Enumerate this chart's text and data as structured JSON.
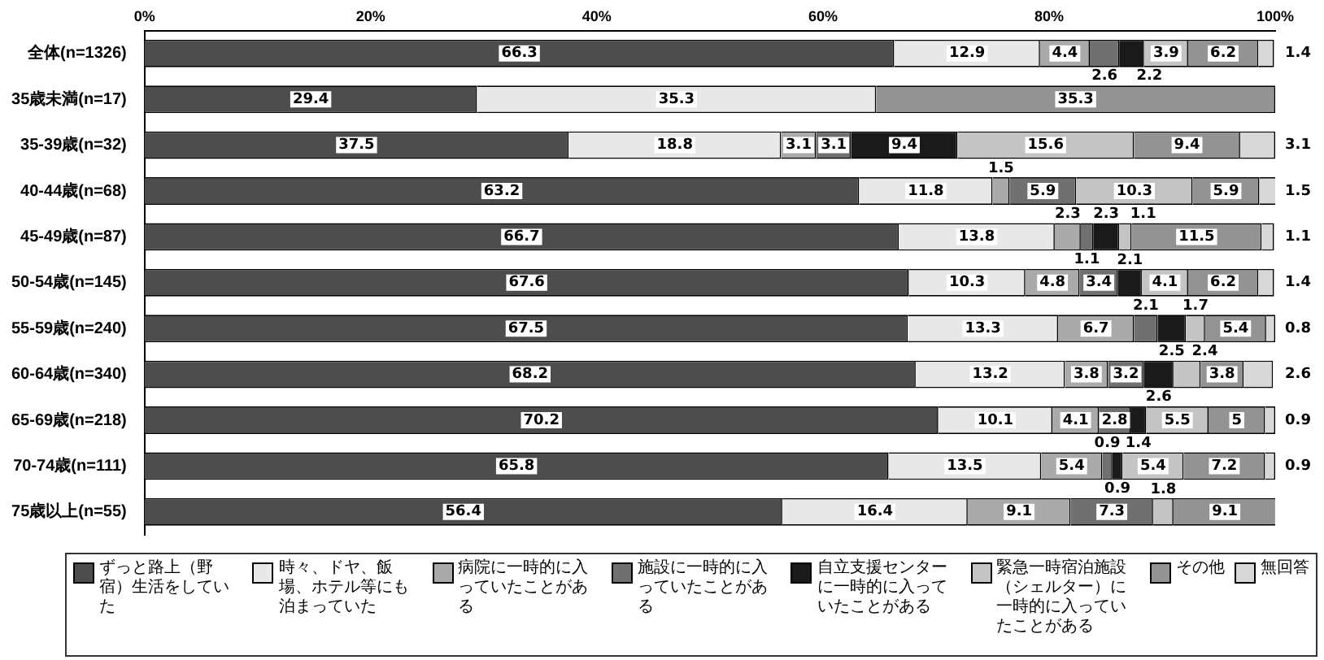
{
  "chart_data": {
    "type": "bar",
    "orientation": "horizontal",
    "stacked": true,
    "data_labels": true,
    "legend": "bottom",
    "grid": false,
    "categories": [
      "全体(n=1326)",
      "35歳未満(n=17)",
      "35-39歳(n=32)",
      "40-44歳(n=68)",
      "45-49歳(n=87)",
      "50-54歳(n=145)",
      "55-59歳(n=240)",
      "60-64歳(n=340)",
      "65-69歳(n=218)",
      "70-74歳(n=111)",
      "75歳以上(n=55)"
    ],
    "xlim": [
      0,
      100
    ],
    "xticks": [
      {
        "value": 0,
        "label": "0%"
      },
      {
        "value": 20,
        "label": "20%"
      },
      {
        "value": 40,
        "label": "40%"
      },
      {
        "value": 60,
        "label": "60%"
      },
      {
        "value": 80,
        "label": "80%"
      },
      {
        "value": 100,
        "label": "100%"
      }
    ],
    "series": [
      {
        "name": "ずっと路上（野宿）生活をしていた",
        "color": "#4d4d4d",
        "values": [
          66.3,
          29.4,
          37.5,
          63.2,
          66.7,
          67.6,
          67.5,
          68.2,
          70.2,
          65.8,
          56.4
        ]
      },
      {
        "name": "時々、ドヤ、飯場、ホテル等にも泊まっていた",
        "color": "#e8e8e8",
        "values": [
          12.9,
          35.3,
          18.8,
          11.8,
          13.8,
          10.3,
          13.3,
          13.2,
          10.1,
          13.5,
          16.4
        ]
      },
      {
        "name": "病院に一時的に入っていたことがある",
        "color": "#aaaaaa",
        "values": [
          4.4,
          null,
          3.1,
          1.5,
          2.3,
          4.8,
          6.7,
          3.8,
          4.1,
          5.4,
          9.1
        ]
      },
      {
        "name": "施設に一時的に入っていたことがある",
        "color": "#707070",
        "values": [
          2.6,
          null,
          3.1,
          5.9,
          1.1,
          3.4,
          2.1,
          3.2,
          2.8,
          0.9,
          7.3
        ]
      },
      {
        "name": "自立支援センターに一時的に入っていたことがある",
        "color": "#1a1a1a",
        "values": [
          2.2,
          null,
          9.4,
          null,
          2.3,
          2.1,
          2.5,
          2.6,
          1.4,
          0.9,
          null
        ]
      },
      {
        "name": "緊急一時宿泊施設（シェルター）に一時的に入っていたことがある",
        "color": "#c4c4c4",
        "values": [
          3.9,
          null,
          15.6,
          10.3,
          1.1,
          4.1,
          1.7,
          2.4,
          5.5,
          5.4,
          1.8
        ]
      },
      {
        "name": "その他",
        "color": "#939393",
        "values": [
          6.2,
          35.3,
          9.4,
          5.9,
          11.5,
          6.2,
          5.4,
          3.8,
          5.0,
          7.2,
          9.1
        ]
      },
      {
        "name": "無回答",
        "color": "#d8d8d8",
        "values": [
          1.4,
          null,
          3.1,
          1.5,
          1.1,
          1.4,
          0.8,
          2.6,
          0.9,
          0.9,
          null
        ]
      }
    ]
  }
}
